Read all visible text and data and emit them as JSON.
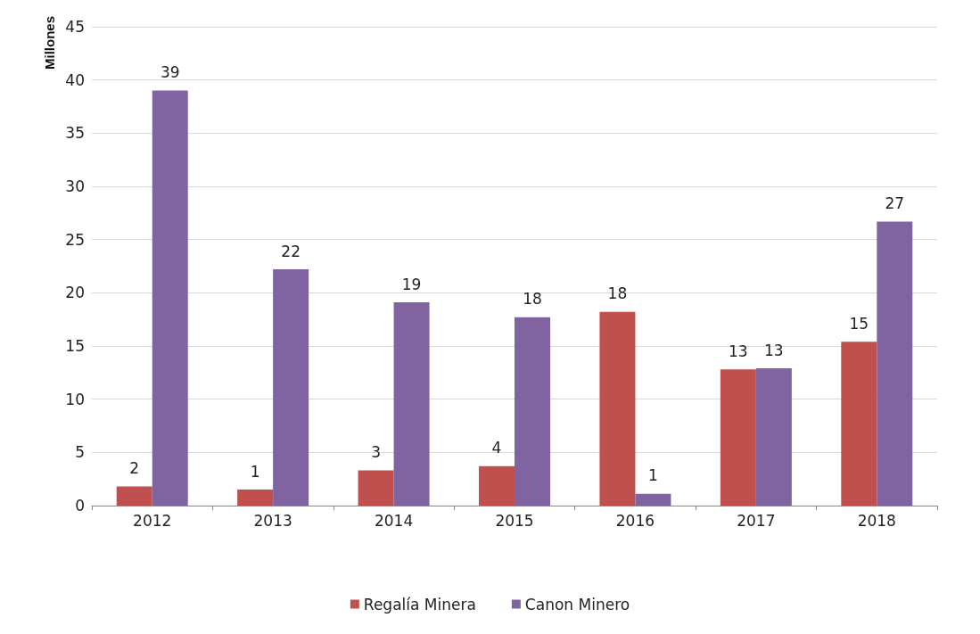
{
  "chart_data": {
    "type": "bar",
    "ylabel": "Millones",
    "categories": [
      "2012",
      "2013",
      "2014",
      "2015",
      "2016",
      "2017",
      "2018"
    ],
    "series": [
      {
        "name": "Regalía Minera",
        "color": "#c0504d",
        "values": [
          1.8,
          1.5,
          3.3,
          3.7,
          18.2,
          12.8,
          15.4
        ],
        "value_labels": [
          "2",
          "1",
          "3",
          "4",
          "18",
          "13",
          "15"
        ]
      },
      {
        "name": "Canon Minero",
        "color": "#8064a2",
        "values": [
          39.0,
          22.2,
          19.1,
          17.7,
          1.1,
          12.9,
          26.7
        ],
        "value_labels": [
          "39",
          "22",
          "19",
          "18",
          "1",
          "13",
          "27"
        ]
      }
    ],
    "ylim": [
      0,
      45
    ],
    "yticks": [
      0,
      5,
      10,
      15,
      20,
      25,
      30,
      35,
      40,
      45
    ],
    "grid": "y",
    "legend": "bottom"
  }
}
